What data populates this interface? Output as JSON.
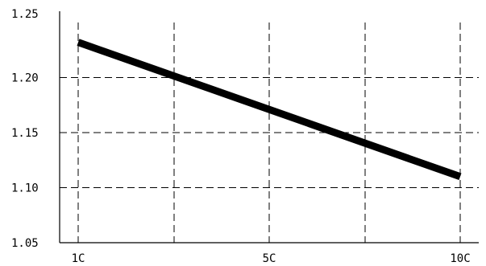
{
  "chart_data": {
    "type": "line",
    "xlabel": "",
    "ylabel": "",
    "title": "",
    "x_ticks": [
      "1C",
      "5C",
      "10C"
    ],
    "y_ticks": [
      "1.25",
      "1.20",
      "1.15",
      "1.10",
      "1.05"
    ],
    "xlim": [
      1,
      10
    ],
    "ylim": [
      1.05,
      1.25
    ],
    "grid": true,
    "grid_style": "dashed",
    "series": [
      {
        "x": [
          1,
          10
        ],
        "y": [
          1.232,
          1.11
        ],
        "color": "#000000"
      }
    ]
  }
}
